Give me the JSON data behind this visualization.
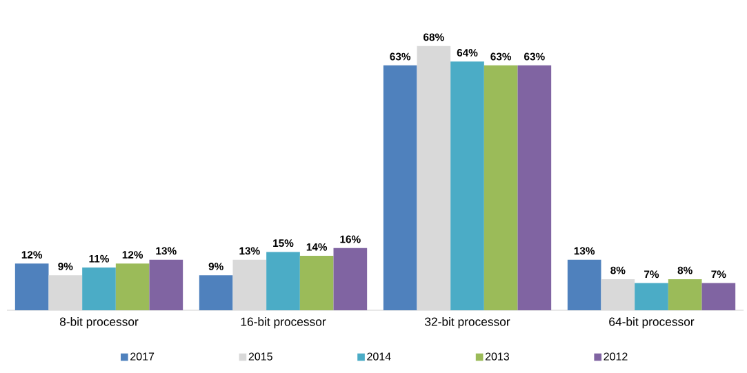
{
  "chart_data": {
    "type": "bar",
    "categories": [
      "8-bit processor",
      "16-bit processor",
      "32-bit processor",
      "64-bit processor"
    ],
    "series": [
      {
        "name": "2017",
        "color": "#4f81bd",
        "values": [
          12,
          9,
          63,
          13
        ],
        "value_labels": [
          "12%",
          "9%",
          "63%",
          "13%"
        ]
      },
      {
        "name": "2015",
        "color": "#d9d9d9",
        "values": [
          9,
          13,
          68,
          8
        ],
        "value_labels": [
          "9%",
          "13%",
          "68%",
          "8%"
        ]
      },
      {
        "name": "2014",
        "color": "#4bacc6",
        "values": [
          11,
          15,
          64,
          7
        ],
        "value_labels": [
          "11%",
          "15%",
          "64%",
          "7%"
        ]
      },
      {
        "name": "2013",
        "color": "#9bbb59",
        "values": [
          12,
          14,
          63,
          8
        ],
        "value_labels": [
          "12%",
          "14%",
          "63%",
          "8%"
        ]
      },
      {
        "name": "2012",
        "color": "#8064a2",
        "values": [
          13,
          16,
          63,
          7
        ],
        "value_labels": [
          "13%",
          "16%",
          "63%",
          "7%"
        ]
      }
    ],
    "legend": "bottom"
  }
}
